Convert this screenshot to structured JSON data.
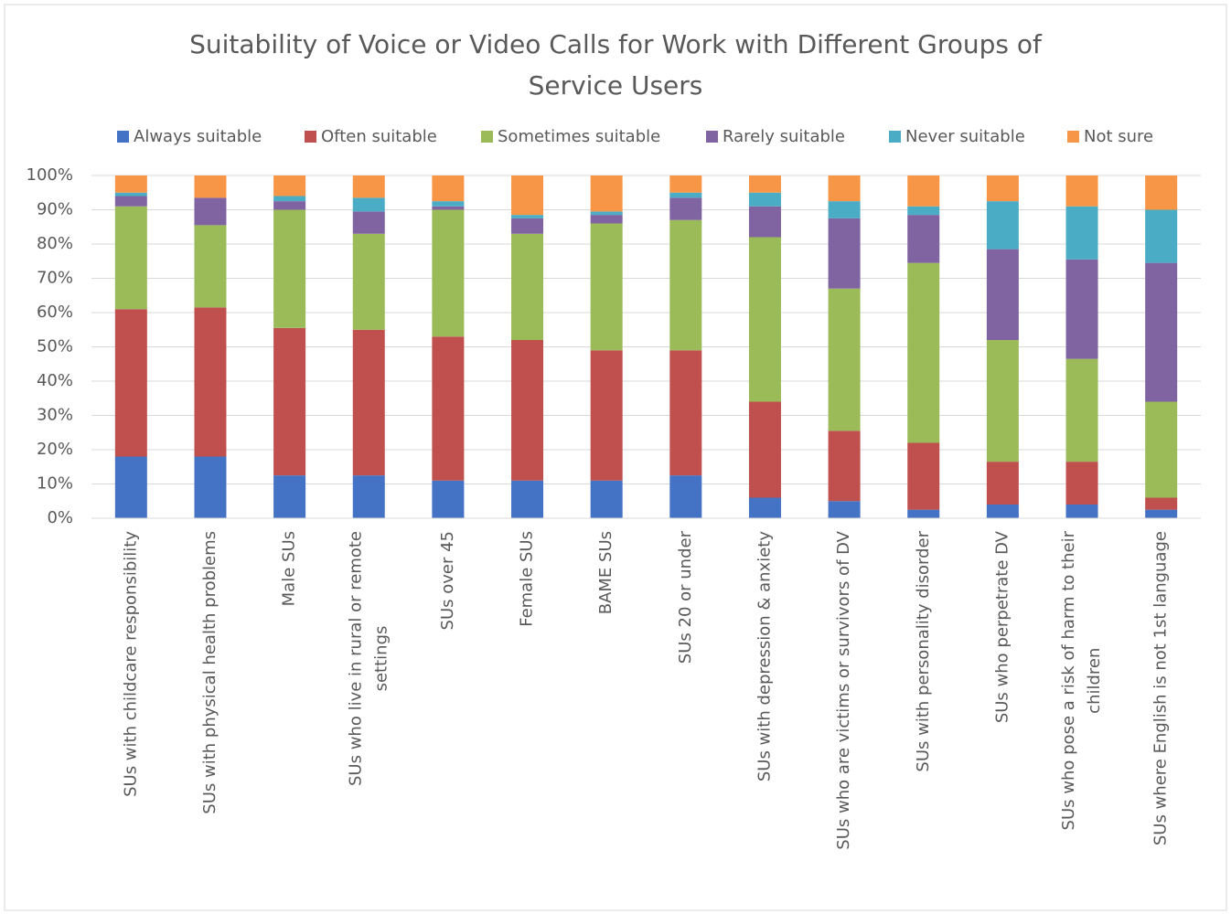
{
  "chart_data": {
    "type": "stacked_bar",
    "title": "Suitability of Voice or Video Calls for Work with Different Groups of Service Users",
    "categories": [
      "SUs with childcare responsibility",
      "SUs with physical health problems",
      "Male SUs",
      "SUs who live in rural or remote settings",
      "SUs over 45",
      "Female SUs",
      "BAME SUs",
      "SUs 20 or under",
      "SUs with depression & anxiety",
      "SUs who are victims or survivors of DV",
      "SUs with personality disorder",
      "SUs who perpetrate DV",
      "SUs who pose a risk of harm to their children",
      "SUs where English is not 1st language"
    ],
    "series": [
      {
        "name": "Always suitable",
        "color": "#4472c4",
        "values": [
          18,
          18,
          12.5,
          12.5,
          11,
          11,
          11,
          12.5,
          6,
          5,
          2.5,
          4,
          4,
          2.5
        ]
      },
      {
        "name": "Often suitable",
        "color": "#c0504d",
        "values": [
          43,
          43.5,
          43,
          42.5,
          42,
          41,
          38,
          36.5,
          28,
          20.5,
          19.5,
          12.5,
          12.5,
          3.5
        ]
      },
      {
        "name": "Sometimes suitable",
        "color": "#9bbb59",
        "values": [
          30,
          24,
          34.5,
          28,
          37,
          31,
          37,
          38,
          48,
          41.5,
          52.5,
          35.5,
          30,
          28
        ]
      },
      {
        "name": "Rarely suitable",
        "color": "#8064a2",
        "values": [
          3,
          8,
          2.5,
          6.5,
          1,
          4.5,
          2.5,
          6.5,
          9,
          20.5,
          14,
          26.5,
          29,
          40.5
        ]
      },
      {
        "name": "Never suitable",
        "color": "#4bacc6",
        "values": [
          1,
          0,
          1.5,
          4,
          1.5,
          1,
          1,
          1.5,
          4,
          5,
          2.5,
          14,
          15.5,
          15.5
        ]
      },
      {
        "name": "Not sure",
        "color": "#f79646",
        "values": [
          5,
          6.5,
          6,
          6.5,
          7.5,
          11.5,
          10.5,
          5,
          5,
          7.5,
          9,
          7.5,
          9,
          10
        ]
      }
    ],
    "ylim": [
      0,
      100
    ],
    "yticks": [
      {
        "value": 0,
        "label": "0%"
      },
      {
        "value": 10,
        "label": "10%"
      },
      {
        "value": 20,
        "label": "20%"
      },
      {
        "value": 30,
        "label": "30%"
      },
      {
        "value": 40,
        "label": "40%"
      },
      {
        "value": 50,
        "label": "50%"
      },
      {
        "value": 60,
        "label": "60%"
      },
      {
        "value": 70,
        "label": "70%"
      },
      {
        "value": 80,
        "label": "80%"
      },
      {
        "value": 90,
        "label": "90%"
      },
      {
        "value": 100,
        "label": "100%"
      }
    ],
    "grid": true,
    "legend": "top"
  }
}
